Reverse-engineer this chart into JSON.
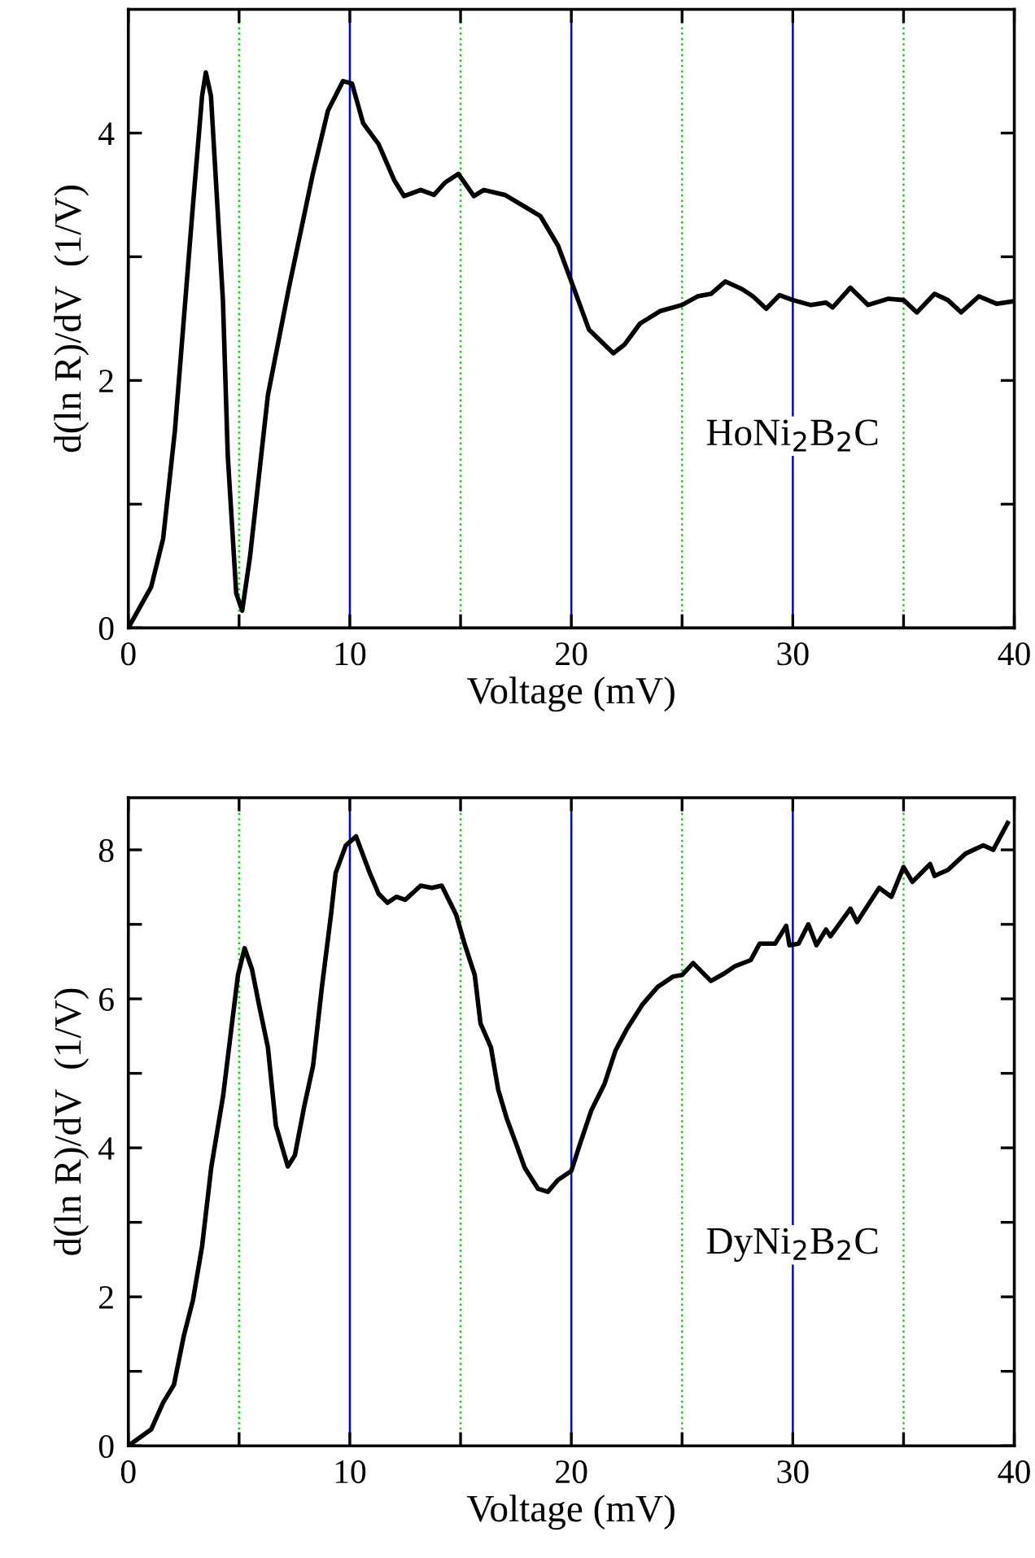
{
  "chart_data": [
    {
      "type": "line",
      "xlabel": "Voltage (mV)",
      "ylabel": "d(ln R)/dV  (1/V)",
      "annotations": [
        "HoNi$_{2}$B$_{2}$C"
      ],
      "xlim": [
        0,
        40
      ],
      "ylim": [
        0,
        5
      ],
      "xticks": [
        0,
        {
          "value": 5,
          "label": null
        },
        10,
        {
          "value": 15,
          "label": null
        },
        20,
        {
          "value": 25,
          "label": null
        },
        30,
        {
          "value": 35,
          "label": null
        },
        40
      ],
      "yticks": [
        0,
        {
          "value": 1,
          "label": null
        },
        2,
        {
          "value": 3,
          "label": null
        },
        4
      ],
      "ref_lines": [
        {
          "axis": "x",
          "value": 5,
          "color": "#00dd00",
          "line_style": "dotted"
        },
        {
          "axis": "x",
          "value": 10,
          "color": "#0000ff",
          "line_style": "solid"
        },
        {
          "axis": "x",
          "value": 15,
          "color": "#00dd00",
          "line_style": "dotted"
        },
        {
          "axis": "x",
          "value": 20,
          "color": "#0000ff",
          "line_style": "solid"
        },
        {
          "axis": "x",
          "value": 25,
          "color": "#00dd00",
          "line_style": "dotted"
        },
        {
          "axis": "x",
          "value": 30,
          "color": "#0000ff",
          "line_style": "solid"
        },
        {
          "axis": "x",
          "value": 35,
          "color": "#00dd00",
          "line_style": "dotted"
        }
      ],
      "series": [
        {
          "color": "#000000",
          "x": [
            0,
            1.03,
            1.57,
            2.1,
            2.9,
            3.33,
            3.5,
            3.73,
            4.27,
            4.49,
            4.87,
            5.14,
            5.49,
            6.3,
            7.25,
            8.33,
            9.01,
            9.69,
            10.1,
            10.6,
            11.3,
            12.0,
            12.45,
            13.2,
            13.8,
            14.3,
            14.9,
            15.6,
            16.05,
            17.0,
            18.6,
            19.4,
            20.0,
            20.8,
            21.9,
            22.4,
            23.1,
            24.0,
            25.0,
            25.7,
            26.3,
            26.95,
            27.7,
            28.2,
            28.8,
            29.4,
            30.0,
            30.8,
            31.5,
            31.8,
            32.6,
            33.4,
            34.3,
            35.0,
            35.6,
            36.4,
            37.0,
            37.6,
            38.4,
            39.2,
            39.95
          ],
          "values": [
            0,
            0.33,
            0.72,
            1.59,
            3.38,
            4.3,
            4.49,
            4.3,
            2.65,
            1.39,
            0.28,
            0.14,
            0.57,
            1.88,
            2.75,
            3.67,
            4.18,
            4.42,
            4.4,
            4.08,
            3.91,
            3.62,
            3.49,
            3.54,
            3.5,
            3.6,
            3.67,
            3.49,
            3.54,
            3.5,
            3.33,
            3.09,
            2.8,
            2.41,
            2.22,
            2.29,
            2.46,
            2.56,
            2.61,
            2.68,
            2.7,
            2.8,
            2.74,
            2.68,
            2.58,
            2.69,
            2.65,
            2.61,
            2.63,
            2.59,
            2.75,
            2.61,
            2.66,
            2.65,
            2.55,
            2.7,
            2.65,
            2.55,
            2.68,
            2.62,
            2.64
          ]
        }
      ]
    },
    {
      "type": "line",
      "xlabel": "Voltage (mV)",
      "ylabel": "d(ln R)/dV  (1/V)",
      "annotations": [
        "DyNi$_{2}$B$_{2}$C"
      ],
      "xlim": [
        0,
        40
      ],
      "ylim": [
        0,
        8.7
      ],
      "xticks": [
        0,
        {
          "value": 5,
          "label": null
        },
        10,
        {
          "value": 15,
          "label": null
        },
        20,
        {
          "value": 25,
          "label": null
        },
        30,
        {
          "value": 35,
          "label": null
        },
        40
      ],
      "yticks": [
        0,
        {
          "value": 1,
          "label": null
        },
        2,
        {
          "value": 3,
          "label": null
        },
        4,
        {
          "value": 5,
          "label": null
        },
        6,
        {
          "value": 7,
          "label": null
        },
        8
      ],
      "ref_lines": [
        {
          "axis": "x",
          "value": 5,
          "color": "#00dd00",
          "line_style": "dotted"
        },
        {
          "axis": "x",
          "value": 10,
          "color": "#0000ff",
          "line_style": "solid"
        },
        {
          "axis": "x",
          "value": 15,
          "color": "#00dd00",
          "line_style": "dotted"
        },
        {
          "axis": "x",
          "value": 20,
          "color": "#0000ff",
          "line_style": "solid"
        },
        {
          "axis": "x",
          "value": 25,
          "color": "#00dd00",
          "line_style": "dotted"
        },
        {
          "axis": "x",
          "value": 30,
          "color": "#0000ff",
          "line_style": "solid"
        },
        {
          "axis": "x",
          "value": 35,
          "color": "#00dd00",
          "line_style": "dotted"
        }
      ],
      "series": [
        {
          "color": "#000000",
          "x": [
            0,
            1.03,
            1.57,
            2.06,
            2.5,
            2.92,
            3.33,
            3.74,
            4.28,
            4.68,
            4.95,
            5.25,
            5.58,
            5.9,
            6.3,
            6.66,
            7.2,
            7.52,
            7.93,
            8.34,
            8.74,
            9.15,
            9.36,
            9.82,
            10.28,
            10.9,
            11.3,
            11.7,
            12.1,
            12.5,
            13.2,
            13.7,
            14.15,
            14.8,
            15.2,
            15.64,
            15.9,
            16.37,
            16.7,
            17.1,
            17.5,
            17.9,
            18.5,
            18.94,
            19.4,
            20.0,
            20.4,
            20.9,
            21.5,
            22.0,
            22.5,
            23.2,
            23.9,
            24.6,
            25.0,
            25.5,
            26.3,
            26.9,
            27.4,
            28.1,
            28.5,
            29.2,
            29.7,
            29.85,
            30.26,
            30.7,
            31.07,
            31.5,
            31.7,
            32.6,
            32.9,
            33.9,
            34.45,
            35.0,
            35.4,
            36.2,
            36.4,
            37.0,
            37.8,
            38.6,
            39.05,
            39.7
          ],
          "values": [
            0,
            0.22,
            0.58,
            0.82,
            1.47,
            1.96,
            2.68,
            3.73,
            4.7,
            5.67,
            6.32,
            6.68,
            6.4,
            5.92,
            5.35,
            4.3,
            3.75,
            3.9,
            4.54,
            5.1,
            6.16,
            7.13,
            7.69,
            8.06,
            8.18,
            7.69,
            7.41,
            7.29,
            7.37,
            7.33,
            7.52,
            7.49,
            7.52,
            7.13,
            6.72,
            6.32,
            5.67,
            5.35,
            4.78,
            4.38,
            4.06,
            3.73,
            3.45,
            3.41,
            3.57,
            3.69,
            4.06,
            4.5,
            4.86,
            5.31,
            5.59,
            5.92,
            6.16,
            6.3,
            6.32,
            6.48,
            6.24,
            6.34,
            6.44,
            6.52,
            6.74,
            6.74,
            6.98,
            6.72,
            6.74,
            7.0,
            6.72,
            6.93,
            6.84,
            7.21,
            7.03,
            7.49,
            7.37,
            7.77,
            7.57,
            7.81,
            7.65,
            7.73,
            7.95,
            8.06,
            8.0,
            8.36
          ]
        }
      ]
    }
  ]
}
